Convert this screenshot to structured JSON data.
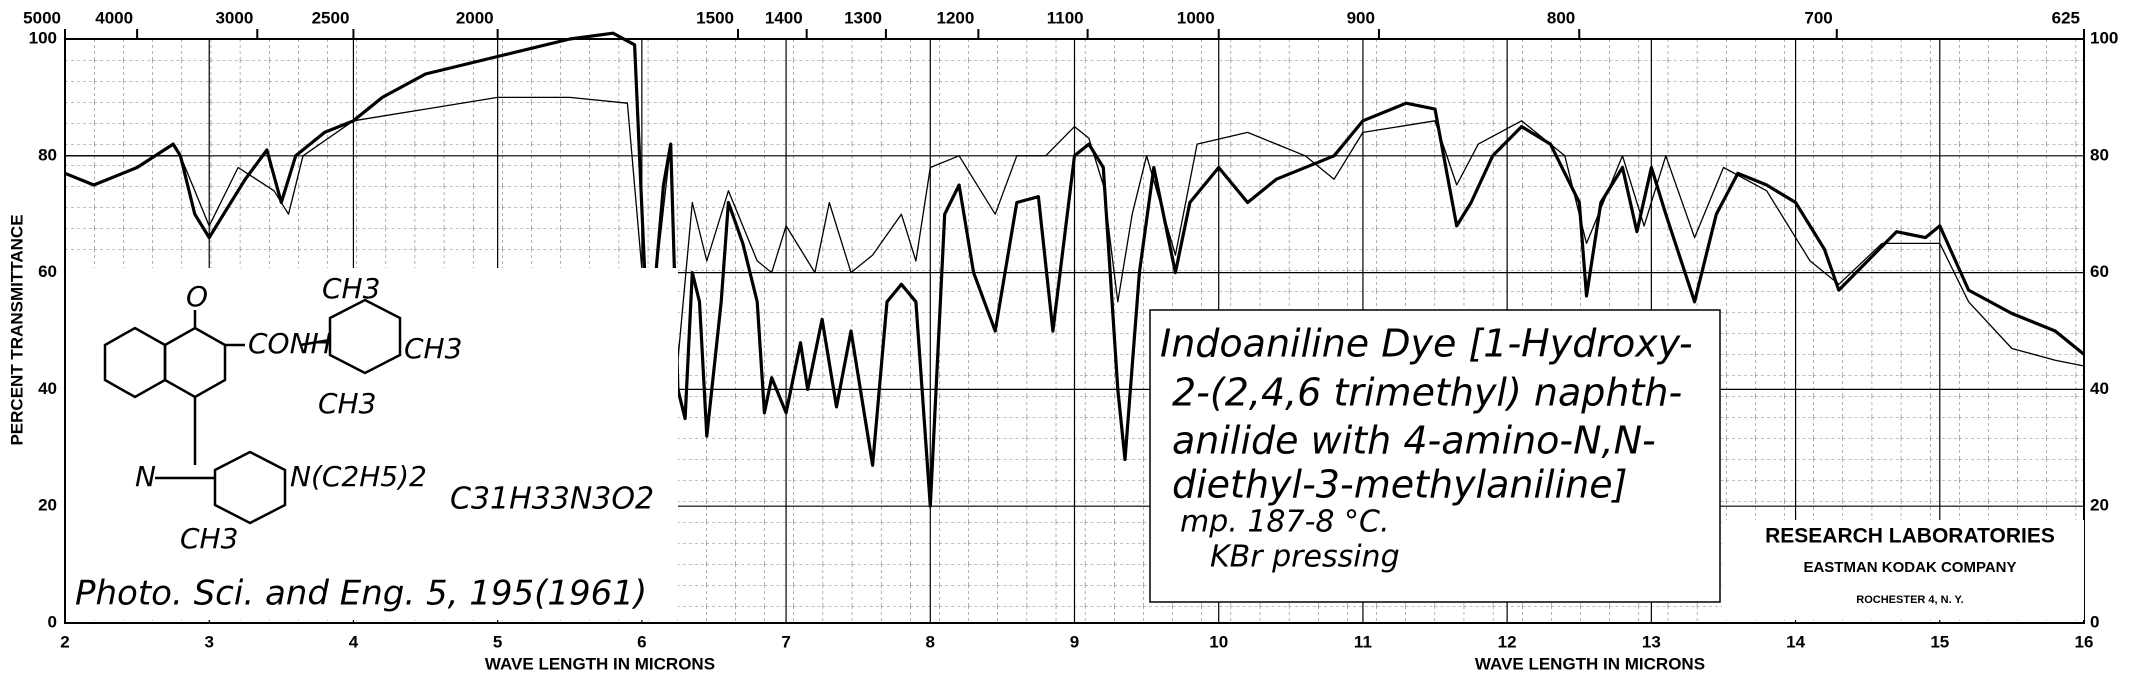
{
  "chart_data": {
    "type": "line",
    "xlabel": "WAVE LENGTH IN MICRONS",
    "ylabel": "PERCENT TRANSMITTANCE",
    "xlim": [
      2,
      16
    ],
    "xticks": [
      2,
      3,
      4,
      5,
      6,
      7,
      8,
      9,
      10,
      11,
      12,
      13,
      14,
      15,
      16
    ],
    "ylim": [
      0,
      100
    ],
    "yticks": [
      0,
      20,
      40,
      60,
      80,
      100
    ],
    "x2ticks": [
      5000,
      4000,
      3000,
      2500,
      2000,
      1500,
      1400,
      1300,
      1200,
      1100,
      1000,
      900,
      800,
      700,
      625
    ],
    "grid": true,
    "series": [
      {
        "color": "#000000",
        "width": 3.2,
        "x": [
          2.0,
          2.2,
          2.5,
          2.75,
          2.8,
          2.9,
          3.0,
          3.1,
          3.25,
          3.4,
          3.5,
          3.6,
          3.8,
          4.0,
          4.2,
          4.5,
          5.0,
          5.5,
          5.8,
          5.95,
          6.02,
          6.08,
          6.15,
          6.2,
          6.25,
          6.3,
          6.35,
          6.4,
          6.45,
          6.55,
          6.6,
          6.7,
          6.8,
          6.85,
          6.9,
          7.0,
          7.1,
          7.15,
          7.25,
          7.35,
          7.45,
          7.6,
          7.7,
          7.8,
          7.9,
          8.0,
          8.1,
          8.2,
          8.3,
          8.45,
          8.6,
          8.75,
          8.85,
          9.0,
          9.1,
          9.2,
          9.3,
          9.35,
          9.45,
          9.55,
          9.7,
          9.8,
          10.0,
          10.2,
          10.4,
          10.8,
          11.0,
          11.3,
          11.5,
          11.65,
          11.75,
          11.9,
          12.1,
          12.3,
          12.5,
          12.55,
          12.65,
          12.8,
          12.9,
          13.0,
          13.1,
          13.3,
          13.45,
          13.6,
          13.8,
          14.0,
          14.2,
          14.3,
          14.5,
          14.7,
          14.9,
          15.0,
          15.2,
          15.5,
          15.8,
          16.0
        ],
        "values": [
          77,
          75,
          78,
          82,
          80,
          70,
          66,
          70,
          76,
          81,
          72,
          80,
          84,
          86,
          90,
          94,
          97,
          100,
          101,
          99,
          60,
          55,
          75,
          82,
          40,
          35,
          60,
          55,
          32,
          55,
          72,
          65,
          55,
          36,
          42,
          36,
          48,
          40,
          52,
          37,
          50,
          27,
          55,
          58,
          55,
          20,
          70,
          75,
          60,
          50,
          72,
          73,
          50,
          80,
          82,
          78,
          40,
          28,
          60,
          78,
          60,
          72,
          78,
          72,
          76,
          80,
          86,
          89,
          88,
          68,
          72,
          80,
          85,
          82,
          72,
          56,
          72,
          78,
          67,
          78,
          70,
          55,
          70,
          77,
          75,
          72,
          64,
          57,
          62,
          67,
          66,
          68,
          57,
          53,
          50,
          46
        ]
      },
      {
        "color": "#000000",
        "width": 1.3,
        "x": [
          2.0,
          2.5,
          2.8,
          3.0,
          3.2,
          3.45,
          3.55,
          3.65,
          4.0,
          4.5,
          5.0,
          5.5,
          5.9,
          6.02,
          6.1,
          6.2,
          6.25,
          6.35,
          6.45,
          6.6,
          6.8,
          6.9,
          7.0,
          7.2,
          7.3,
          7.45,
          7.6,
          7.8,
          7.9,
          8.0,
          8.2,
          8.45,
          8.6,
          8.8,
          9.0,
          9.1,
          9.2,
          9.3,
          9.4,
          9.5,
          9.7,
          9.85,
          10.2,
          10.6,
          10.8,
          11.0,
          11.5,
          11.65,
          11.8,
          12.1,
          12.4,
          12.55,
          12.8,
          12.95,
          13.1,
          13.3,
          13.5,
          13.8,
          14.1,
          14.3,
          14.6,
          15.0,
          15.2,
          15.5,
          15.8,
          16.0
        ],
        "values": [
          80,
          80,
          80,
          68,
          78,
          74,
          70,
          80,
          86,
          88,
          90,
          90,
          89,
          55,
          60,
          82,
          45,
          72,
          62,
          74,
          62,
          60,
          68,
          60,
          72,
          60,
          63,
          70,
          62,
          78,
          80,
          70,
          80,
          80,
          85,
          83,
          75,
          55,
          70,
          80,
          63,
          82,
          84,
          80,
          76,
          84,
          86,
          75,
          82,
          86,
          80,
          65,
          80,
          68,
          80,
          66,
          78,
          74,
          62,
          58,
          65,
          65,
          55,
          47,
          45,
          44
        ]
      }
    ],
    "label_text": [
      "Indoaniline Dye [1-Hydroxy-",
      "2-(2,4,6 trimethyl) naphth-",
      "anilide with 4-amino-N,N-",
      "diethyl-3-methylaniline]",
      "mp. 187-8 °C.",
      "KBr pressing"
    ],
    "formula": "C31H33N3O2",
    "reference": "Photo. Sci. and Eng. 5, 195(1961)",
    "structure_labels": [
      "O",
      "CONH",
      "CH3",
      "CH3",
      "CH3",
      "N",
      "N(C2H5)2",
      "CH3"
    ],
    "lab": [
      "RESEARCH LABORATORIES",
      "EASTMAN KODAK COMPANY",
      "ROCHESTER 4, N. Y."
    ]
  }
}
